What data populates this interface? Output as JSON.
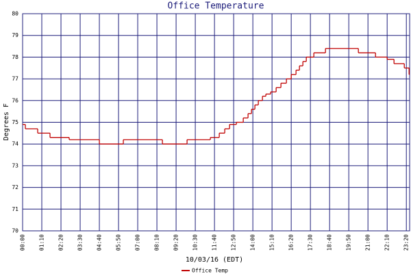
{
  "chart_data": {
    "type": "line",
    "title": "Office Temperature",
    "y_label": "Degrees F",
    "x_label": "10/03/16 (EDT)",
    "x": [
      0,
      10,
      55,
      100,
      170,
      280,
      367.5,
      510,
      600,
      685,
      717.5,
      737.5,
      755,
      780,
      805,
      822.5,
      835,
      847.5,
      860,
      875,
      887.5,
      905,
      925,
      942.5,
      962.5,
      980,
      997.5,
      1010,
      1022.5,
      1035,
      1062.5,
      1105,
      1225,
      1287.5,
      1330,
      1355,
      1392.5,
      1410
    ],
    "series": [
      {
        "name": "Office Temp",
        "color": "#c00000",
        "values": [
          74.9,
          74.7,
          74.5,
          74.3,
          74.2,
          74.0,
          74.2,
          74.0,
          74.2,
          74.3,
          74.5,
          74.7,
          74.9,
          75.0,
          75.2,
          75.4,
          75.6,
          75.8,
          76.0,
          76.2,
          76.3,
          76.4,
          76.6,
          76.8,
          77.0,
          77.2,
          77.4,
          77.6,
          77.8,
          78.0,
          78.2,
          78.4,
          78.2,
          78.0,
          77.9,
          77.7,
          77.5,
          77.2
        ]
      }
    ],
    "xlim": [
      0,
      1412
    ],
    "ylim": [
      70,
      80
    ],
    "yticks": [
      70,
      71,
      72,
      73,
      74,
      75,
      76,
      77,
      78,
      79,
      80
    ],
    "xticks": [
      {
        "value": 0,
        "label": "00:00"
      },
      {
        "value": 70,
        "label": "01:10"
      },
      {
        "value": 140,
        "label": "02:20"
      },
      {
        "value": 210,
        "label": "03:30"
      },
      {
        "value": 280,
        "label": "04:40"
      },
      {
        "value": 350,
        "label": "05:50"
      },
      {
        "value": 420,
        "label": "07:00"
      },
      {
        "value": 490,
        "label": "08:10"
      },
      {
        "value": 560,
        "label": "09:20"
      },
      {
        "value": 630,
        "label": "10:30"
      },
      {
        "value": 700,
        "label": "11:40"
      },
      {
        "value": 770,
        "label": "12:50"
      },
      {
        "value": 840,
        "label": "14:00"
      },
      {
        "value": 910,
        "label": "15:10"
      },
      {
        "value": 980,
        "label": "16:20"
      },
      {
        "value": 1050,
        "label": "17:30"
      },
      {
        "value": 1120,
        "label": "18:40"
      },
      {
        "value": 1190,
        "label": "19:50"
      },
      {
        "value": 1260,
        "label": "21:00"
      },
      {
        "value": 1330,
        "label": "22:10"
      },
      {
        "value": 1400,
        "label": "23:20"
      }
    ],
    "grid": true
  }
}
